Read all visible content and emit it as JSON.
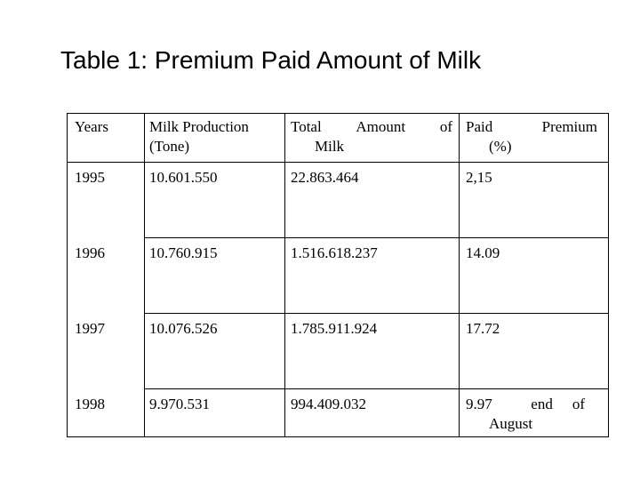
{
  "title": "Table 1: Premium Paid Amount of Milk",
  "table": {
    "headers": {
      "years": "Years",
      "milk_production_line1": "Milk Production",
      "milk_production_line2": "(Tone)",
      "total_amount_word1": "Total",
      "total_amount_word2": "Amount",
      "total_amount_word3": "of",
      "total_amount_line2": "Milk",
      "paid_premium_word1": "Paid",
      "paid_premium_word2": "Premium",
      "paid_premium_line2": "(%)"
    },
    "rows": [
      {
        "year": "1995",
        "production": "10.601.550",
        "amount": "22.863.464",
        "premium": "2,15"
      },
      {
        "year": "1996",
        "production": "10.760.915",
        "amount": "1.516.618.237",
        "premium": "14.09"
      },
      {
        "year": "1997",
        "production": "10.076.526",
        "amount": "1.785.911.924",
        "premium": "17.72"
      },
      {
        "year": "1998",
        "production": "9.970.531",
        "amount": "994.409.032",
        "premium": "9.97",
        "premium_note_word1": "end",
        "premium_note_word2": "of",
        "premium_note_line2": "August"
      }
    ]
  }
}
